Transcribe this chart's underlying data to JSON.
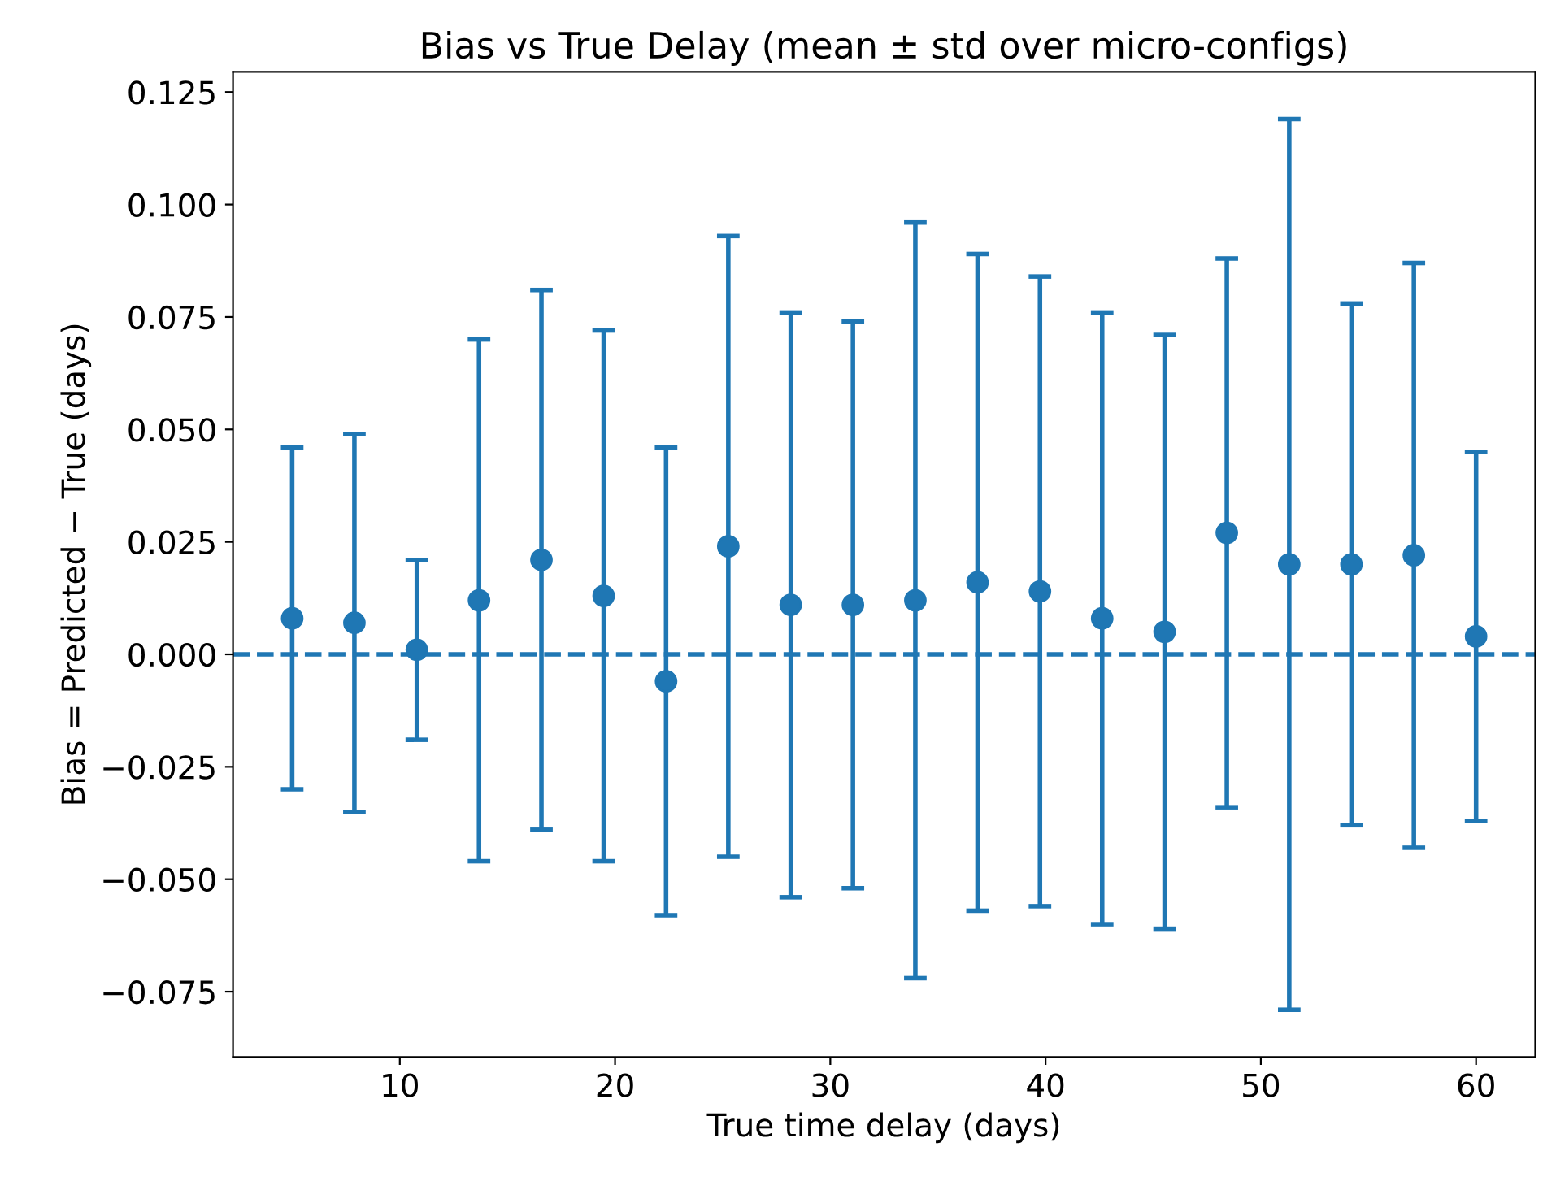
{
  "chart_data": {
    "type": "scatter",
    "title": "Bias vs True Delay (mean ± std over micro-configs)",
    "xlabel": "True time delay (days)",
    "ylabel": "Bias = Predicted − True (days)",
    "x": [
      5,
      7.89,
      10.79,
      13.68,
      16.58,
      19.47,
      22.37,
      25.26,
      28.16,
      31.05,
      33.95,
      36.84,
      39.74,
      42.63,
      45.53,
      48.42,
      51.32,
      54.21,
      57.11,
      60
    ],
    "series": [
      {
        "color": "#1f77b4",
        "values": [
          0.008,
          0.007,
          0.001,
          0.012,
          0.021,
          0.013,
          -0.006,
          0.024,
          0.011,
          0.011,
          0.012,
          0.016,
          0.014,
          0.008,
          0.005,
          0.027,
          0.02,
          0.02,
          0.022,
          0.004
        ],
        "errors": [
          0.038,
          0.042,
          0.02,
          0.058,
          0.06,
          0.059,
          0.052,
          0.069,
          0.065,
          0.063,
          0.084,
          0.073,
          0.07,
          0.068,
          0.066,
          0.061,
          0.099,
          0.058,
          0.065,
          0.041
        ]
      }
    ],
    "marker": "circle",
    "xlim": [
      2.25,
      62.75
    ],
    "xticks": [
      10,
      20,
      30,
      40,
      50,
      60
    ],
    "ylim": [
      -0.0895,
      0.1295
    ],
    "yticks": [
      {
        "value": -0.075,
        "label": "−0.075"
      },
      {
        "value": -0.05,
        "label": "−0.050"
      },
      {
        "value": -0.025,
        "label": "−0.025"
      },
      {
        "value": 0,
        "label": "0.000"
      },
      {
        "value": 0.025,
        "label": "0.025"
      },
      {
        "value": 0.05,
        "label": "0.050"
      },
      {
        "value": 0.075,
        "label": "0.075"
      },
      {
        "value": 0.1,
        "label": "0.100"
      },
      {
        "value": 0.125,
        "label": "0.125"
      }
    ],
    "ref_lines": [
      {
        "axis": "y",
        "value": 0,
        "color": "#1f77b4",
        "line_style": "dashed"
      }
    ],
    "grid": false,
    "legend": false
  }
}
